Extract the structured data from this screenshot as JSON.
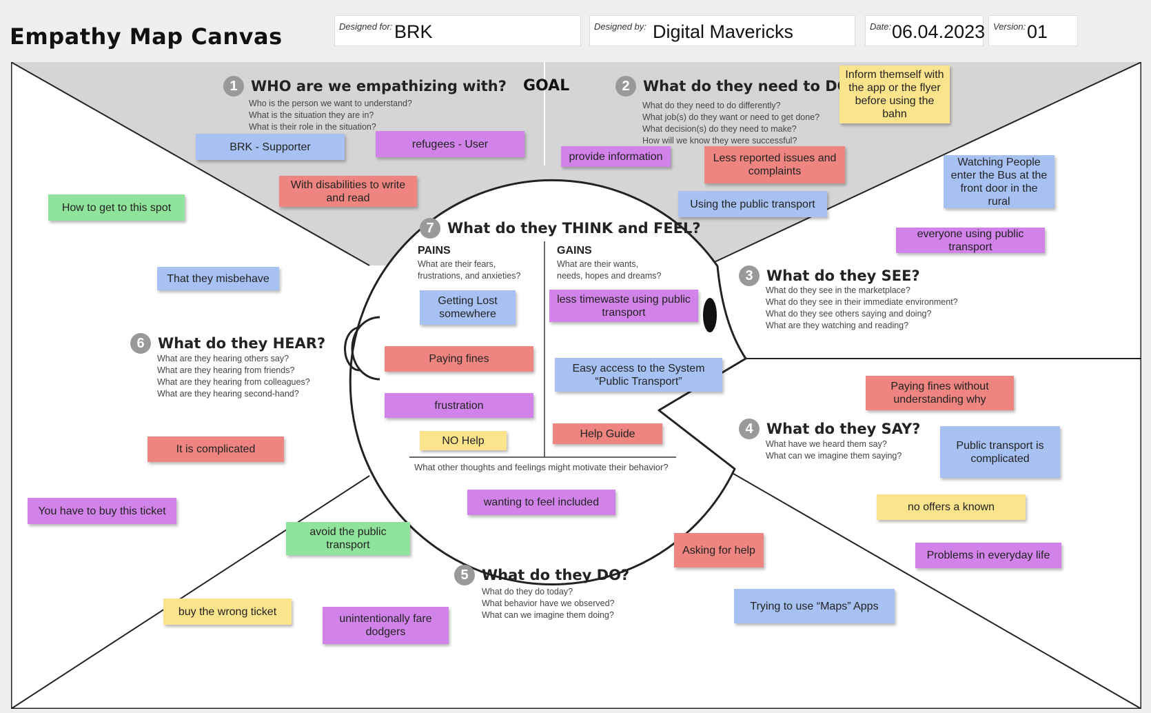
{
  "title": "Empathy Map Canvas",
  "meta": {
    "designed_for_label": "Designed for:",
    "designed_for": "BRK",
    "designed_by_label": "Designed by:",
    "designed_by": "Digital Mavericks",
    "date_label": "Date:",
    "date": "06.04.2023",
    "version_label": "Version:",
    "version": "01"
  },
  "goal": "GOAL",
  "sections": {
    "who": {
      "num": "1",
      "title": "WHO are we empathizing with?",
      "questions": [
        "Who is the person we want to understand?",
        "What is the situation they are in?",
        "What is their role in the situation?"
      ]
    },
    "need": {
      "num": "2",
      "title": "What do they need to DO?",
      "questions": [
        "What do they need to do differently?",
        "What job(s) do they want or need to get done?",
        "What decision(s) do they need to make?",
        "How will we know they were successful?"
      ]
    },
    "see": {
      "num": "3",
      "title": "What do they SEE?",
      "questions": [
        "What do they see in the marketplace?",
        "What do they see in their immediate environment?",
        "What do they see others saying and doing?",
        "What are they watching and reading?"
      ]
    },
    "say": {
      "num": "4",
      "title": "What do they SAY?",
      "questions": [
        "What have we heard them say?",
        "What can we imagine them saying?"
      ]
    },
    "do": {
      "num": "5",
      "title": "What do they DO?",
      "questions": [
        "What do they do today?",
        "What behavior have we observed?",
        "What can we imagine them doing?"
      ]
    },
    "hear": {
      "num": "6",
      "title": "What do they HEAR?",
      "questions": [
        "What are they hearing others say?",
        "What are they hearing from friends?",
        "What are they hearing from colleagues?",
        "What are they hearing second-hand?"
      ]
    },
    "think": {
      "num": "7",
      "title": "What do they THINK and FEEL?",
      "pains_title": "PAINS",
      "pains_q": "What are their fears,\nfrustrations, and anxieties?",
      "gains_title": "GAINS",
      "gains_q": "What are their wants,\nneeds, hopes and dreams?",
      "footer": "What other thoughts and feelings might motivate their behavior?"
    }
  },
  "notes": [
    {
      "id": "n1",
      "text": "BRK - Supporter",
      "color": "blue"
    },
    {
      "id": "n2",
      "text": "refugees - User",
      "color": "purple"
    },
    {
      "id": "n3",
      "text": "With disabilities to write and read",
      "color": "red"
    },
    {
      "id": "n4",
      "text": "provide information",
      "color": "purple"
    },
    {
      "id": "n5",
      "text": "Less reported issues and complaints",
      "color": "red"
    },
    {
      "id": "n6",
      "text": "Using the public transport",
      "color": "blue"
    },
    {
      "id": "n7",
      "text": "Inform themself with the app or the flyer before using the bahn",
      "color": "yellow"
    },
    {
      "id": "n8",
      "text": "Watching People enter the Bus at the front door in the rural",
      "color": "blue"
    },
    {
      "id": "n9",
      "text": "everyone using public transport",
      "color": "purple"
    },
    {
      "id": "n10",
      "text": "How to get to this spot",
      "color": "green"
    },
    {
      "id": "n11",
      "text": "That they misbehave",
      "color": "blue"
    },
    {
      "id": "n12",
      "text": "It is complicated",
      "color": "red"
    },
    {
      "id": "n13",
      "text": "You have to buy this ticket",
      "color": "purple"
    },
    {
      "id": "n14",
      "text": "Getting Lost somewhere",
      "color": "blue"
    },
    {
      "id": "n15",
      "text": "less timewaste using public transport",
      "color": "purple"
    },
    {
      "id": "n16",
      "text": "Paying fines",
      "color": "red"
    },
    {
      "id": "n17",
      "text": "Easy access to the System “Public Transport”",
      "color": "blue"
    },
    {
      "id": "n18",
      "text": "frustration",
      "color": "purple"
    },
    {
      "id": "n19",
      "text": "NO Help",
      "color": "yellow"
    },
    {
      "id": "n20",
      "text": "Help Guide",
      "color": "red"
    },
    {
      "id": "n21",
      "text": "wanting to feel included",
      "color": "purple"
    },
    {
      "id": "n22",
      "text": "Paying fines without understanding why",
      "color": "red"
    },
    {
      "id": "n23",
      "text": "Public transport is complicated",
      "color": "blue"
    },
    {
      "id": "n24",
      "text": "no offers a known",
      "color": "yellow"
    },
    {
      "id": "n25",
      "text": "Problems in everyday life",
      "color": "purple"
    },
    {
      "id": "n26",
      "text": "avoid the public transport",
      "color": "green"
    },
    {
      "id": "n27",
      "text": "Asking for help",
      "color": "red"
    },
    {
      "id": "n28",
      "text": "Trying to use “Maps” Apps",
      "color": "blue"
    },
    {
      "id": "n29",
      "text": "buy the wrong ticket",
      "color": "yellow"
    },
    {
      "id": "n30",
      "text": "unintentionally fare dodgers",
      "color": "purple"
    }
  ]
}
